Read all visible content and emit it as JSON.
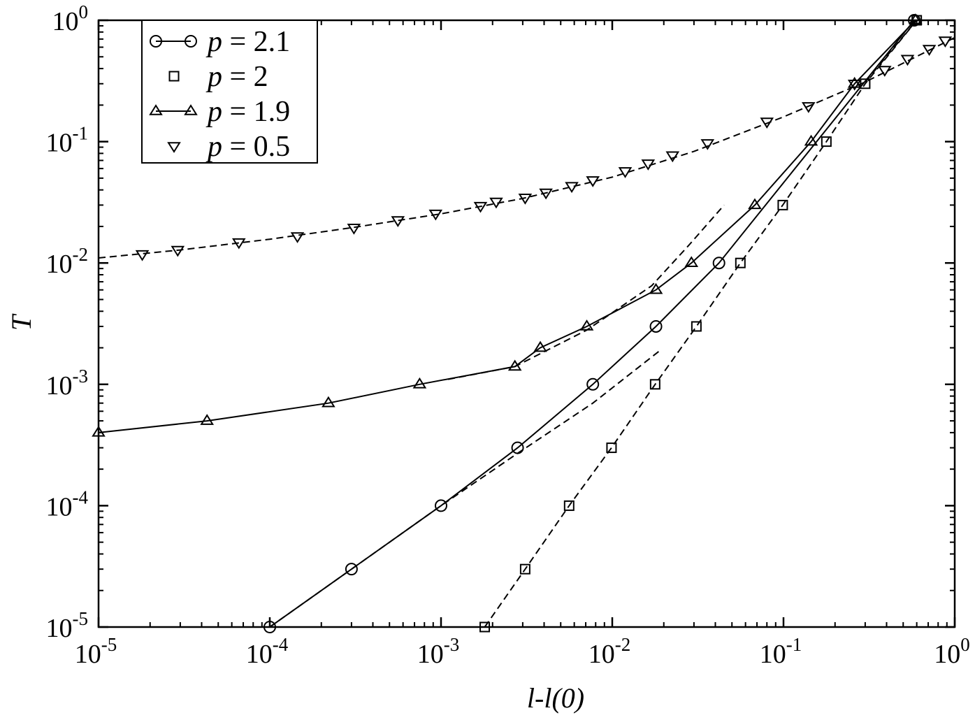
{
  "chart_data": {
    "type": "line",
    "xlabel": "l-l(0)",
    "ylabel": "T",
    "xscale": "log",
    "yscale": "log",
    "xlim": [
      1e-05,
      1
    ],
    "ylim": [
      1e-05,
      1
    ],
    "x_ticks": [
      {
        "base": "10",
        "exp": "-5"
      },
      {
        "base": "10",
        "exp": "-4"
      },
      {
        "base": "10",
        "exp": "-3"
      },
      {
        "base": "10",
        "exp": "-2"
      },
      {
        "base": "10",
        "exp": "-1"
      },
      {
        "base": "10",
        "exp": "0"
      }
    ],
    "y_ticks": [
      {
        "base": "10",
        "exp": "-5"
      },
      {
        "base": "10",
        "exp": "-4"
      },
      {
        "base": "10",
        "exp": "-3"
      },
      {
        "base": "10",
        "exp": "-2"
      },
      {
        "base": "10",
        "exp": "-1"
      },
      {
        "base": "10",
        "exp": "0"
      }
    ],
    "grid": false,
    "legend_position": "top-left",
    "series": [
      {
        "name": "p = 2.1",
        "marker": "circle",
        "line": "solid",
        "x": [
          0.0001,
          0.0003,
          0.001,
          0.0028,
          0.0077,
          0.018,
          0.042,
          0.58
        ],
        "y": [
          1e-05,
          3e-05,
          0.0001,
          0.0003,
          0.001,
          0.003,
          0.01,
          1.0
        ]
      },
      {
        "name": "p = 2",
        "marker": "square",
        "line": "none",
        "x": [
          0.0018,
          0.0031,
          0.0056,
          0.0099,
          0.0178,
          0.031,
          0.056,
          0.099,
          0.178,
          0.3,
          0.6
        ],
        "y": [
          1e-05,
          3e-05,
          0.0001,
          0.0003,
          0.001,
          0.003,
          0.01,
          0.03,
          0.1,
          0.3,
          1.0
        ]
      },
      {
        "name": "p = 1.9",
        "marker": "triangle-up",
        "line": "solid",
        "x": [
          1e-05,
          4.3e-05,
          0.00022,
          0.00075,
          0.0027,
          0.0038,
          0.0071,
          0.018,
          0.029,
          0.068,
          0.145,
          0.26,
          0.59
        ],
        "y": [
          0.0004,
          0.0005,
          0.0007,
          0.001,
          0.0014,
          0.002,
          0.003,
          0.006,
          0.01,
          0.03,
          0.1,
          0.3,
          1.0
        ]
      },
      {
        "name": "p = 0.5",
        "marker": "triangle-down",
        "line": "none",
        "x": [
          1.8e-05,
          2.9e-05,
          6.6e-05,
          0.000145,
          0.00031,
          0.00056,
          0.00093,
          0.0017,
          0.0021,
          0.0031,
          0.0041,
          0.0058,
          0.0077,
          0.0119,
          0.0162,
          0.0225,
          0.036,
          0.08,
          0.14,
          0.26,
          0.39,
          0.53,
          0.71,
          0.88
        ],
        "y": [
          0.0118,
          0.0128,
          0.0148,
          0.0166,
          0.0195,
          0.0225,
          0.0255,
          0.0295,
          0.032,
          0.0345,
          0.038,
          0.043,
          0.048,
          0.057,
          0.066,
          0.077,
          0.097,
          0.146,
          0.196,
          0.3,
          0.39,
          0.48,
          0.58,
          0.68
        ]
      }
    ],
    "fits": [
      {
        "for": "p = 2.1",
        "x": [
          0.0001,
          0.0003,
          0.001,
          0.0028,
          0.0077,
          0.019
        ],
        "y": [
          1e-05,
          3e-05,
          0.0001,
          0.00027,
          0.0007,
          0.0019
        ]
      },
      {
        "for": "p = 2",
        "x": [
          0.0018,
          0.0031,
          0.0056,
          0.0099,
          0.0178,
          0.031,
          0.056,
          0.099,
          0.178,
          0.3,
          0.6
        ],
        "y": [
          1e-05,
          3e-05,
          0.0001,
          0.0003,
          0.001,
          0.003,
          0.01,
          0.03,
          0.1,
          0.3,
          1.0
        ]
      },
      {
        "for": "p = 1.9",
        "x": [
          0.0011,
          0.0027,
          0.0071,
          0.017,
          0.028,
          0.045
        ],
        "y": [
          0.0011,
          0.0014,
          0.0028,
          0.0065,
          0.014,
          0.03
        ]
      },
      {
        "for": "p = 0.5",
        "x": [
          1e-05,
          3e-05,
          0.0001,
          0.0003,
          0.001,
          0.003,
          0.01,
          0.03,
          0.1,
          0.3,
          1.0
        ],
        "y": [
          0.011,
          0.0128,
          0.0157,
          0.0195,
          0.0254,
          0.034,
          0.051,
          0.083,
          0.16,
          0.31,
          0.72
        ]
      },
      {
        "for": "p = 2.1 upper",
        "x": [
          0.3,
          0.6
        ],
        "y": [
          0.31,
          1.0
        ]
      }
    ]
  }
}
